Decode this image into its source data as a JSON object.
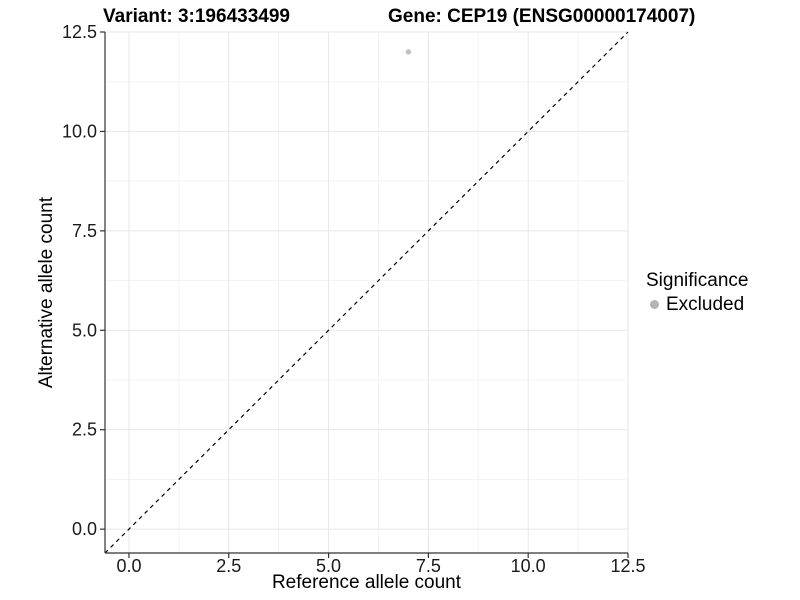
{
  "chart_data": {
    "type": "scatter",
    "titles": {
      "left": "Variant: 3:196433499",
      "right": "Gene: CEP19 (ENSG00000174007)"
    },
    "xlabel": "Reference allele count",
    "ylabel": "Alternative allele count",
    "xlim": [
      -0.6,
      12.5
    ],
    "ylim": [
      -0.6,
      12.5
    ],
    "x_ticks": [
      0,
      2.5,
      5,
      7.5,
      10,
      12.5
    ],
    "x_tick_labels": [
      "0.0",
      "2.5",
      "5.0",
      "7.5",
      "10.0",
      "12.5"
    ],
    "y_ticks": [
      0,
      2.5,
      5,
      7.5,
      10,
      12.5
    ],
    "y_tick_labels": [
      "0.0",
      "2.5",
      "5.0",
      "7.5",
      "10.0",
      "12.5"
    ],
    "grid": "major+minor",
    "legend_position": "right",
    "legend": {
      "title": "Significance",
      "items": [
        {
          "label": "Excluded",
          "color": "#b4b4b4"
        }
      ]
    },
    "series": [
      {
        "name": "Excluded",
        "color": "#c0c0c0",
        "points": [
          {
            "x": 7,
            "y": 12
          }
        ]
      }
    ],
    "reference_line": {
      "type": "identity",
      "slope": 1,
      "intercept": 0,
      "style": "dashed",
      "color": "#000000"
    },
    "colors": {
      "grid_major": "#e7e7e7",
      "grid_minor": "#f3f3f3",
      "axis_line": "#333333",
      "tick_mark": "#333333",
      "tick_text": "#1a1a1a",
      "background": "#ffffff"
    }
  }
}
